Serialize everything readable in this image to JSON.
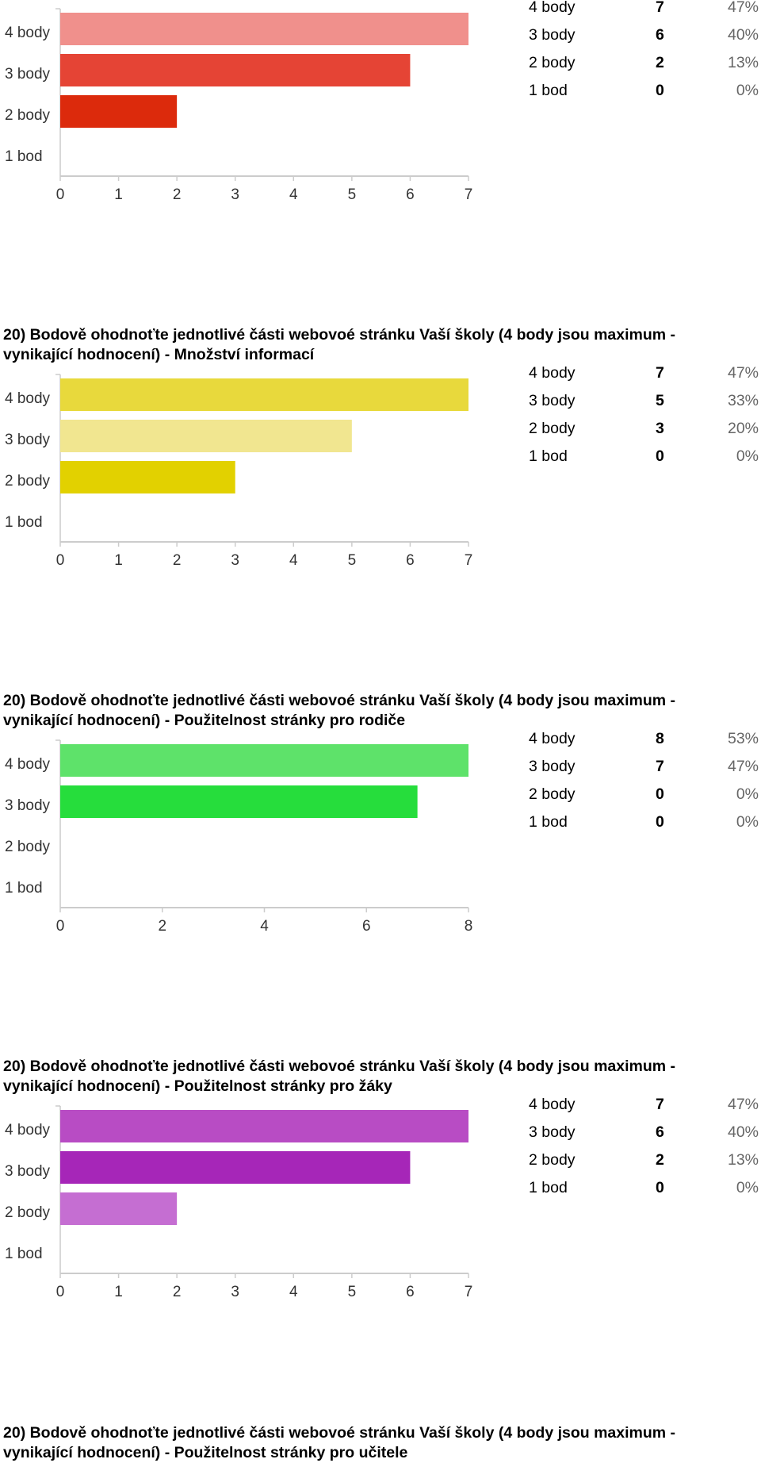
{
  "final_question": "20) Bodově ohodnoťte jednotlivé části webovoé stránku Vaší školy (4 body jsou maximum - vynikající hodnocení) - Použitelnost stránky pro učitele",
  "chart_data": [
    {
      "type": "bar",
      "orientation": "horizontal",
      "title": "",
      "categories": [
        "4 body",
        "3 body",
        "2 body",
        "1 bod"
      ],
      "values": [
        7,
        6,
        2,
        0
      ],
      "percents": [
        "47%",
        "40%",
        "13%",
        "0%"
      ],
      "colors": [
        "#f0908c",
        "#e54435",
        "#dc2a0c",
        "#dc2a0c"
      ],
      "xlim": [
        0,
        7
      ],
      "xticks": [
        0,
        1,
        2,
        3,
        4,
        5,
        6,
        7
      ]
    },
    {
      "type": "bar",
      "orientation": "horizontal",
      "title": "20) Bodově ohodnoťte jednotlivé části webovoé stránku Vaší školy (4 body jsou maximum - vynikající hodnocení) - Množství informací",
      "categories": [
        "4 body",
        "3 body",
        "2 body",
        "1 bod"
      ],
      "values": [
        7,
        5,
        3,
        0
      ],
      "percents": [
        "47%",
        "33%",
        "20%",
        "0%"
      ],
      "colors": [
        "#e8d93c",
        "#f1e690",
        "#e2d100",
        "#e2d100"
      ],
      "xlim": [
        0,
        7
      ],
      "xticks": [
        0,
        1,
        2,
        3,
        4,
        5,
        6,
        7
      ]
    },
    {
      "type": "bar",
      "orientation": "horizontal",
      "title": "20) Bodově ohodnoťte jednotlivé části webovoé stránku Vaší školy (4 body jsou maximum - vynikající hodnocení) - Použitelnost stránky pro rodiče",
      "categories": [
        "4 body",
        "3 body",
        "2 body",
        "1 bod"
      ],
      "values": [
        8,
        7,
        0,
        0
      ],
      "percents": [
        "53%",
        "47%",
        "0%",
        "0%"
      ],
      "colors": [
        "#5ee26a",
        "#26dd3c",
        "#26dd3c",
        "#26dd3c"
      ],
      "xlim": [
        0,
        8
      ],
      "xticks": [
        0,
        2,
        4,
        6,
        8
      ]
    },
    {
      "type": "bar",
      "orientation": "horizontal",
      "title": "20) Bodově ohodnoťte jednotlivé části webovoé stránku Vaší školy (4 body jsou maximum - vynikající hodnocení) - Použitelnost stránky pro žáky",
      "categories": [
        "4 body",
        "3 body",
        "2 body",
        "1 bod"
      ],
      "values": [
        7,
        6,
        2,
        0
      ],
      "percents": [
        "47%",
        "40%",
        "13%",
        "0%"
      ],
      "colors": [
        "#b84cc4",
        "#a626b8",
        "#c56ed2",
        "#c56ed2"
      ],
      "xlim": [
        0,
        7
      ],
      "xticks": [
        0,
        1,
        2,
        3,
        4,
        5,
        6,
        7
      ]
    }
  ]
}
